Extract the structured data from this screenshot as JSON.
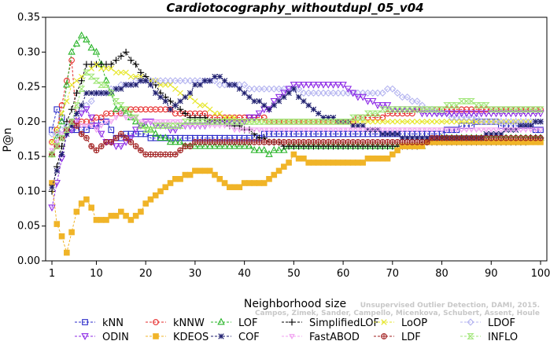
{
  "chart_data": {
    "type": "line",
    "title": "Cardiotocography_withoutdupl_05_v04",
    "xlabel": "Neighborhood size",
    "ylabel": "P@n",
    "xlim": [
      1,
      100
    ],
    "ylim": [
      0,
      0.35
    ],
    "x_ticks": [
      1,
      10,
      20,
      30,
      40,
      50,
      60,
      70,
      80,
      90,
      100
    ],
    "y_ticks": [
      "0.00",
      "0.05",
      "0.10",
      "0.15",
      "0.20",
      "0.25",
      "0.30",
      "0.35"
    ],
    "legend_position": "bottom",
    "credit": [
      "Campos, Zimek, Sander, Campello, Micenkova, Schubert, Assent, Houle",
      "Unsupervised Outlier Detection, DAMI, 2015."
    ],
    "series": [
      {
        "name": "kNN",
        "color": "#2828c8",
        "marker": "square",
        "knots": [
          [
            1,
            0.19
          ],
          [
            2,
            0.22
          ],
          [
            4,
            0.19
          ],
          [
            8,
            0.19
          ],
          [
            12,
            0.2
          ],
          [
            14,
            0.175
          ],
          [
            18,
            0.185
          ],
          [
            22,
            0.175
          ],
          [
            40,
            0.175
          ],
          [
            48,
            0.185
          ],
          [
            60,
            0.185
          ],
          [
            70,
            0.185
          ],
          [
            80,
            0.185
          ],
          [
            88,
            0.2
          ],
          [
            100,
            0.19
          ]
        ]
      },
      {
        "name": "kNNW",
        "color": "#e62828",
        "marker": "circle",
        "knots": [
          [
            1,
            0.17
          ],
          [
            2,
            0.19
          ],
          [
            5,
            0.29
          ],
          [
            6,
            0.2
          ],
          [
            8,
            0.2
          ],
          [
            12,
            0.21
          ],
          [
            20,
            0.22
          ],
          [
            30,
            0.21
          ],
          [
            40,
            0.205
          ],
          [
            50,
            0.2
          ],
          [
            60,
            0.2
          ],
          [
            70,
            0.21
          ],
          [
            80,
            0.22
          ],
          [
            90,
            0.22
          ],
          [
            100,
            0.22
          ]
        ]
      },
      {
        "name": "LOF",
        "color": "#28b428",
        "marker": "triangle-up",
        "knots": [
          [
            1,
            0.15
          ],
          [
            3,
            0.2
          ],
          [
            5,
            0.3
          ],
          [
            7,
            0.325
          ],
          [
            10,
            0.3
          ],
          [
            14,
            0.22
          ],
          [
            18,
            0.2
          ],
          [
            25,
            0.17
          ],
          [
            30,
            0.165
          ],
          [
            40,
            0.165
          ],
          [
            45,
            0.155
          ],
          [
            50,
            0.165
          ],
          [
            60,
            0.165
          ],
          [
            70,
            0.165
          ],
          [
            75,
            0.165
          ],
          [
            80,
            0.175
          ],
          [
            90,
            0.175
          ],
          [
            100,
            0.175
          ]
        ]
      },
      {
        "name": "SimplifiedLOF",
        "color": "#000000",
        "marker": "plus",
        "knots": [
          [
            1,
            0.1
          ],
          [
            4,
            0.2
          ],
          [
            8,
            0.28
          ],
          [
            12,
            0.28
          ],
          [
            16,
            0.3
          ],
          [
            18,
            0.28
          ],
          [
            22,
            0.25
          ],
          [
            28,
            0.21
          ],
          [
            35,
            0.2
          ],
          [
            40,
            0.19
          ],
          [
            45,
            0.17
          ],
          [
            50,
            0.165
          ],
          [
            60,
            0.165
          ],
          [
            70,
            0.165
          ],
          [
            80,
            0.17
          ],
          [
            90,
            0.17
          ],
          [
            100,
            0.175
          ]
        ]
      },
      {
        "name": "LoOP",
        "color": "#e6e628",
        "marker": "x",
        "knots": [
          [
            1,
            0.17
          ],
          [
            5,
            0.25
          ],
          [
            10,
            0.28
          ],
          [
            15,
            0.27
          ],
          [
            20,
            0.26
          ],
          [
            25,
            0.25
          ],
          [
            30,
            0.23
          ],
          [
            35,
            0.21
          ],
          [
            40,
            0.2
          ],
          [
            50,
            0.2
          ],
          [
            60,
            0.2
          ],
          [
            70,
            0.2
          ],
          [
            80,
            0.2
          ],
          [
            90,
            0.2
          ],
          [
            100,
            0.2
          ]
        ]
      },
      {
        "name": "LDOF",
        "color": "#b4b4f0",
        "marker": "diamond",
        "knots": [
          [
            1,
            0.18
          ],
          [
            5,
            0.2
          ],
          [
            10,
            0.24
          ],
          [
            20,
            0.26
          ],
          [
            30,
            0.26
          ],
          [
            40,
            0.25
          ],
          [
            50,
            0.245
          ],
          [
            60,
            0.24
          ],
          [
            70,
            0.245
          ],
          [
            80,
            0.21
          ],
          [
            90,
            0.2
          ],
          [
            100,
            0.2
          ]
        ]
      },
      {
        "name": "ODIN",
        "color": "#8c28e6",
        "marker": "triangle-down",
        "knots": [
          [
            1,
            0.075
          ],
          [
            4,
            0.18
          ],
          [
            8,
            0.22
          ],
          [
            12,
            0.17
          ],
          [
            15,
            0.165
          ],
          [
            20,
            0.2
          ],
          [
            25,
            0.19
          ],
          [
            35,
            0.2
          ],
          [
            40,
            0.2
          ],
          [
            45,
            0.22
          ],
          [
            50,
            0.255
          ],
          [
            60,
            0.25
          ],
          [
            65,
            0.23
          ],
          [
            70,
            0.22
          ],
          [
            80,
            0.21
          ],
          [
            90,
            0.21
          ],
          [
            100,
            0.21
          ]
        ]
      },
      {
        "name": "KDEOS",
        "color": "#f0b428",
        "marker": "square-filled",
        "knots": [
          [
            1,
            0.11
          ],
          [
            2,
            0.055
          ],
          [
            4,
            0.012
          ],
          [
            6,
            0.07
          ],
          [
            8,
            0.09
          ],
          [
            10,
            0.06
          ],
          [
            12,
            0.06
          ],
          [
            15,
            0.07
          ],
          [
            17,
            0.06
          ],
          [
            20,
            0.08
          ],
          [
            25,
            0.11
          ],
          [
            28,
            0.125
          ],
          [
            33,
            0.13
          ],
          [
            37,
            0.105
          ],
          [
            40,
            0.11
          ],
          [
            45,
            0.115
          ],
          [
            50,
            0.15
          ],
          [
            55,
            0.14
          ],
          [
            60,
            0.14
          ],
          [
            70,
            0.15
          ],
          [
            72,
            0.165
          ],
          [
            80,
            0.17
          ],
          [
            90,
            0.17
          ],
          [
            100,
            0.17
          ]
        ]
      },
      {
        "name": "COF",
        "color": "#1e1e6e",
        "marker": "asterisk",
        "knots": [
          [
            1,
            0.105
          ],
          [
            4,
            0.18
          ],
          [
            8,
            0.24
          ],
          [
            12,
            0.24
          ],
          [
            16,
            0.25
          ],
          [
            20,
            0.26
          ],
          [
            25,
            0.22
          ],
          [
            30,
            0.25
          ],
          [
            35,
            0.265
          ],
          [
            40,
            0.24
          ],
          [
            45,
            0.22
          ],
          [
            50,
            0.245
          ],
          [
            55,
            0.21
          ],
          [
            60,
            0.2
          ],
          [
            70,
            0.18
          ],
          [
            80,
            0.175
          ],
          [
            90,
            0.18
          ],
          [
            100,
            0.2
          ]
        ]
      },
      {
        "name": "FastABOD",
        "color": "#f0a0f0",
        "marker": "triangle-down-small",
        "knots": [
          [
            1,
            0.16
          ],
          [
            5,
            0.2
          ],
          [
            10,
            0.19
          ],
          [
            15,
            0.21
          ],
          [
            20,
            0.2
          ],
          [
            25,
            0.2
          ],
          [
            30,
            0.195
          ],
          [
            40,
            0.19
          ],
          [
            50,
            0.19
          ],
          [
            60,
            0.19
          ],
          [
            70,
            0.19
          ],
          [
            80,
            0.19
          ],
          [
            90,
            0.19
          ],
          [
            100,
            0.19
          ]
        ]
      },
      {
        "name": "LDF",
        "color": "#a01e1e",
        "marker": "circle-plus",
        "knots": [
          [
            1,
            0.15
          ],
          [
            5,
            0.2
          ],
          [
            8,
            0.175
          ],
          [
            10,
            0.16
          ],
          [
            15,
            0.18
          ],
          [
            20,
            0.15
          ],
          [
            25,
            0.15
          ],
          [
            30,
            0.17
          ],
          [
            40,
            0.17
          ],
          [
            50,
            0.17
          ],
          [
            60,
            0.17
          ],
          [
            70,
            0.17
          ],
          [
            80,
            0.175
          ],
          [
            90,
            0.175
          ],
          [
            100,
            0.175
          ]
        ]
      },
      {
        "name": "INFLO",
        "color": "#a0e678",
        "marker": "hourglass",
        "knots": [
          [
            1,
            0.15
          ],
          [
            5,
            0.2
          ],
          [
            8,
            0.27
          ],
          [
            12,
            0.25
          ],
          [
            14,
            0.23
          ],
          [
            20,
            0.19
          ],
          [
            30,
            0.2
          ],
          [
            40,
            0.2
          ],
          [
            50,
            0.2
          ],
          [
            55,
            0.2
          ],
          [
            60,
            0.2
          ],
          [
            70,
            0.22
          ],
          [
            80,
            0.22
          ],
          [
            85,
            0.23
          ],
          [
            90,
            0.22
          ],
          [
            100,
            0.22
          ]
        ]
      }
    ]
  }
}
